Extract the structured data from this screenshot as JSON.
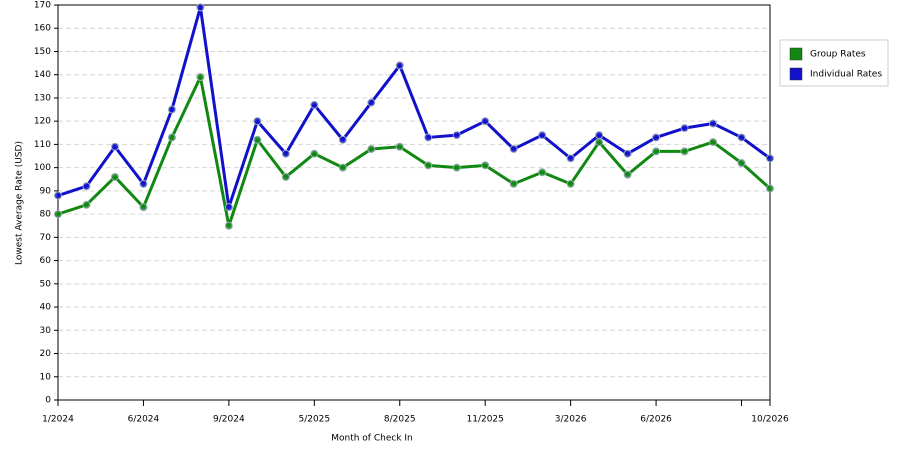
{
  "chart_data": {
    "type": "line",
    "x_label": "Month of Check In",
    "y_label": "Lowest Average Rate (USD)",
    "categories": [
      "1/2024",
      null,
      null,
      "6/2024",
      null,
      null,
      "9/2024",
      null,
      null,
      "5/2025",
      null,
      null,
      "8/2025",
      null,
      null,
      "11/2025",
      null,
      null,
      "3/2026",
      null,
      null,
      "6/2026",
      null,
      null,
      null,
      "10/2026"
    ],
    "series": [
      {
        "name": "Group Rates",
        "color": "#118811",
        "values": [
          80,
          84,
          96,
          83,
          113,
          139,
          75,
          112,
          96,
          106,
          100,
          108,
          109,
          101,
          100,
          101,
          93,
          98,
          93,
          111,
          97,
          107,
          107,
          111,
          102,
          91
        ]
      },
      {
        "name": "Individual Rates",
        "color": "#1111cc",
        "values": [
          88,
          92,
          109,
          93,
          125,
          169,
          83,
          120,
          106,
          127,
          112,
          128,
          144,
          113,
          114,
          120,
          108,
          114,
          104,
          114,
          106,
          113,
          117,
          119,
          113,
          104
        ]
      }
    ],
    "ylim": [
      0,
      170
    ],
    "yticks": [
      0,
      10,
      20,
      30,
      40,
      50,
      60,
      70,
      80,
      90,
      100,
      110,
      120,
      130,
      140,
      150,
      160,
      170
    ],
    "grid": true,
    "legend": "right"
  }
}
